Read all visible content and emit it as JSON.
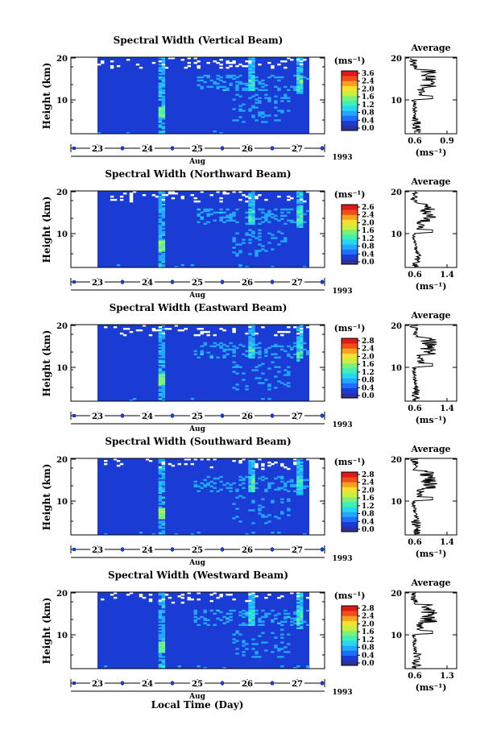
{
  "figure": {
    "xlabel": "Local Time (Day)",
    "ylabel": "Height (km)",
    "month_label": "Aug",
    "year_label": "1993",
    "unit_label": "(ms⁻¹)",
    "average_title": "Average",
    "average_unit": "(ms⁻¹)"
  },
  "colors": {
    "colorscale": [
      "#30309a",
      "#1a3cd4",
      "#1f6fff",
      "#23a6ff",
      "#27d6f0",
      "#3cf0b8",
      "#7cf07a",
      "#c8f040",
      "#f8e030",
      "#f8a020",
      "#f05018",
      "#e01818"
    ]
  },
  "chart_data": [
    {
      "type": "heatmap",
      "title": "Spectral Width (Vertical Beam)",
      "x_ticks": [
        "23",
        "24",
        "25",
        "26",
        "27"
      ],
      "y_ticks": [
        "10",
        "20"
      ],
      "ylim": [
        1,
        20
      ],
      "colorbar_ticks": [
        "3.6",
        "2.4",
        "2.0",
        "1.6",
        "1.2",
        "0.8",
        "0.4",
        "0.0"
      ],
      "average": {
        "type": "line",
        "title": "Average",
        "xlim": [
          0.6,
          0.9
        ],
        "x_ticks": [
          "0.6",
          "0.9"
        ],
        "y_ticks": [
          "10",
          "20"
        ],
        "ylim": [
          1,
          20
        ],
        "peak_heights_km": [
          14,
          15,
          10
        ]
      }
    },
    {
      "type": "heatmap",
      "title": "Spectral Width (Northward Beam)",
      "x_ticks": [
        "23",
        "24",
        "25",
        "26",
        "27"
      ],
      "y_ticks": [
        "10",
        "20"
      ],
      "ylim": [
        1,
        20
      ],
      "colorbar_ticks": [
        "2.6",
        "2.4",
        "2.0",
        "1.6",
        "1.2",
        "0.8",
        "0.4",
        "0.0"
      ],
      "average": {
        "type": "line",
        "title": "Average",
        "xlim": [
          0.6,
          1.4
        ],
        "x_ticks": [
          "0.6",
          "1.4"
        ],
        "y_ticks": [
          "10",
          "20"
        ],
        "ylim": [
          1,
          20
        ],
        "peak_heights_km": [
          14,
          15,
          10
        ]
      }
    },
    {
      "type": "heatmap",
      "title": "Spectral Width (Eastward Beam)",
      "x_ticks": [
        "23",
        "24",
        "25",
        "26",
        "27"
      ],
      "y_ticks": [
        "10",
        "20"
      ],
      "ylim": [
        1,
        20
      ],
      "colorbar_ticks": [
        "2.8",
        "2.4",
        "2.0",
        "1.6",
        "1.2",
        "0.8",
        "0.4",
        "0.0"
      ],
      "average": {
        "type": "line",
        "title": "Average",
        "xlim": [
          0.6,
          1.4
        ],
        "x_ticks": [
          "0.6",
          "1.4"
        ],
        "y_ticks": [
          "10",
          "20"
        ],
        "ylim": [
          1,
          20
        ],
        "peak_heights_km": [
          14,
          15,
          10
        ]
      }
    },
    {
      "type": "heatmap",
      "title": "Spectral Width (Southward Beam)",
      "x_ticks": [
        "23",
        "24",
        "25",
        "26",
        "27"
      ],
      "y_ticks": [
        "10",
        "20"
      ],
      "ylim": [
        1,
        20
      ],
      "colorbar_ticks": [
        "2.8",
        "2.4",
        "2.0",
        "1.6",
        "1.2",
        "0.8",
        "0.4",
        "0.0"
      ],
      "average": {
        "type": "line",
        "title": "Average",
        "xlim": [
          0.6,
          1.4
        ],
        "x_ticks": [
          "0.6",
          "1.4"
        ],
        "y_ticks": [
          "10",
          "20"
        ],
        "ylim": [
          1,
          20
        ],
        "peak_heights_km": [
          14,
          15,
          10
        ]
      }
    },
    {
      "type": "heatmap",
      "title": "Spectral Width (Westward Beam)",
      "x_ticks": [
        "23",
        "24",
        "25",
        "26",
        "27"
      ],
      "y_ticks": [
        "10",
        "20"
      ],
      "ylim": [
        1,
        20
      ],
      "colorbar_ticks": [
        "2.8",
        "2.4",
        "2.0",
        "1.6",
        "1.2",
        "0.8",
        "0.4",
        "0.0"
      ],
      "average": {
        "type": "line",
        "title": "Average",
        "xlim": [
          0.6,
          1.3
        ],
        "x_ticks": [
          "0.6",
          "1.3"
        ],
        "y_ticks": [
          "10",
          "20"
        ],
        "ylim": [
          1,
          20
        ],
        "peak_heights_km": [
          14,
          15,
          10
        ]
      }
    }
  ]
}
